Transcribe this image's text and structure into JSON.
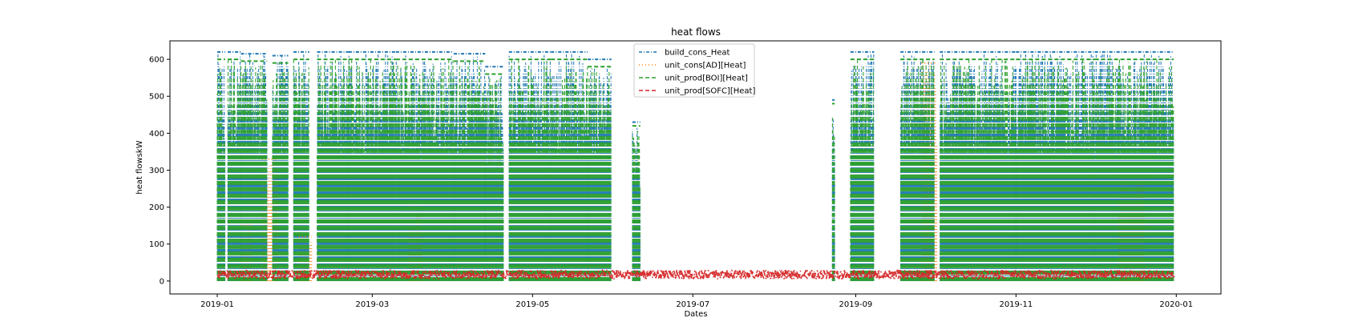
{
  "chart_data": {
    "type": "line",
    "title": "heat flows",
    "xlabel": "Dates",
    "ylabel": "heat flowskW",
    "xlim": [
      "2018-12-14",
      "2020-01-18"
    ],
    "ylim": [
      -35,
      650
    ],
    "x_ticks": [
      "2019-01",
      "2019-03",
      "2019-05",
      "2019-07",
      "2019-09",
      "2019-11",
      "2020-01"
    ],
    "y_ticks": [
      0,
      100,
      200,
      300,
      400,
      500,
      600
    ],
    "grid": false,
    "legend_position": "top-center",
    "series": [
      {
        "name": "build_cons_Heat",
        "color": "#1f77b4",
        "linestyle": "dash-dot",
        "active_periods": [
          [
            "2019-01-01",
            "2019-01-04",
            620
          ],
          [
            "2019-01-05",
            "2019-01-10",
            620
          ],
          [
            "2019-01-10",
            "2019-01-20",
            615
          ],
          [
            "2019-01-22",
            "2019-01-28",
            610
          ],
          [
            "2019-01-30",
            "2019-02-05",
            620
          ],
          [
            "2019-02-08",
            "2019-02-20",
            620
          ],
          [
            "2019-02-20",
            "2019-03-10",
            620
          ],
          [
            "2019-03-10",
            "2019-04-01",
            620
          ],
          [
            "2019-04-01",
            "2019-04-13",
            615
          ],
          [
            "2019-04-13",
            "2019-04-20",
            580
          ],
          [
            "2019-04-22",
            "2019-05-08",
            620
          ],
          [
            "2019-05-08",
            "2019-05-22",
            620
          ],
          [
            "2019-05-22",
            "2019-05-31",
            600
          ],
          [
            "2019-06-08",
            "2019-06-11",
            430
          ],
          [
            "2019-08-23",
            "2019-08-24",
            490
          ],
          [
            "2019-08-30",
            "2019-09-08",
            620
          ],
          [
            "2019-09-18",
            "2019-10-01",
            620
          ],
          [
            "2019-10-03",
            "2019-11-01",
            620
          ],
          [
            "2019-11-01",
            "2019-12-01",
            620
          ],
          [
            "2019-12-01",
            "2019-12-31",
            620
          ]
        ]
      },
      {
        "name": "unit_cons[AD][Heat]",
        "color": "#ff7f0e",
        "linestyle": "dotted",
        "active_periods": [
          [
            "2019-01-10",
            "2019-01-14",
            150
          ],
          [
            "2019-01-18",
            "2019-01-24",
            330
          ],
          [
            "2019-02-01",
            "2019-02-06",
            120
          ],
          [
            "2019-03-15",
            "2019-03-20",
            200
          ],
          [
            "2019-09-26",
            "2019-10-02",
            590
          ],
          [
            "2019-12-10",
            "2019-12-20",
            300
          ]
        ]
      },
      {
        "name": "unit_prod[BOI][Heat]",
        "color": "#2ca02c",
        "linestyle": "dashed",
        "active_periods": [
          [
            "2019-01-01",
            "2019-01-04",
            600
          ],
          [
            "2019-01-05",
            "2019-01-10",
            600
          ],
          [
            "2019-01-10",
            "2019-01-20",
            595
          ],
          [
            "2019-01-22",
            "2019-01-28",
            590
          ],
          [
            "2019-01-30",
            "2019-02-05",
            600
          ],
          [
            "2019-02-08",
            "2019-02-20",
            600
          ],
          [
            "2019-02-20",
            "2019-03-10",
            600
          ],
          [
            "2019-03-10",
            "2019-04-01",
            600
          ],
          [
            "2019-04-01",
            "2019-04-13",
            595
          ],
          [
            "2019-04-13",
            "2019-04-20",
            560
          ],
          [
            "2019-04-22",
            "2019-05-08",
            600
          ],
          [
            "2019-05-08",
            "2019-05-22",
            600
          ],
          [
            "2019-05-22",
            "2019-05-31",
            580
          ],
          [
            "2019-06-08",
            "2019-06-11",
            420
          ],
          [
            "2019-08-23",
            "2019-08-24",
            480
          ],
          [
            "2019-08-30",
            "2019-09-08",
            600
          ],
          [
            "2019-09-18",
            "2019-10-01",
            600
          ],
          [
            "2019-10-03",
            "2019-11-01",
            600
          ],
          [
            "2019-11-01",
            "2019-12-01",
            600
          ],
          [
            "2019-12-01",
            "2019-12-31",
            600
          ]
        ]
      },
      {
        "name": "unit_prod[SOFC][Heat]",
        "color": "#d62728",
        "linestyle": "dashed",
        "band": [
          5,
          30
        ],
        "active_periods": [
          [
            "2019-01-01",
            "2019-06-01",
            25
          ],
          [
            "2019-06-01",
            "2019-08-23",
            22
          ],
          [
            "2019-08-23",
            "2019-12-31",
            25
          ]
        ]
      }
    ]
  }
}
